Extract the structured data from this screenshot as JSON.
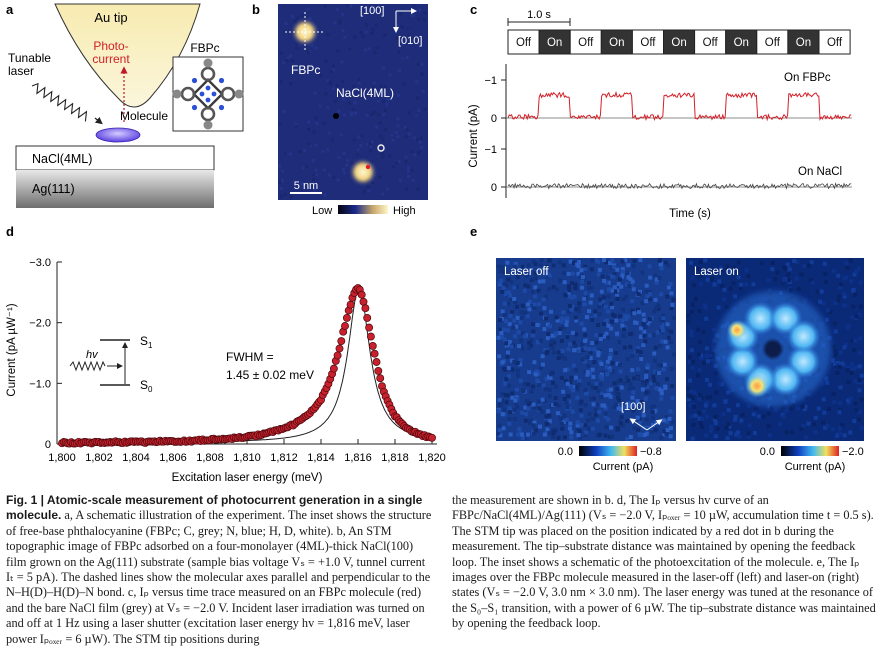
{
  "panels": {
    "a": {
      "letter": "a",
      "tip_label": "Au tip",
      "photocurrent_label": "Photo-\ncurrent",
      "laser_label": "Tunable\nlaser",
      "molecule_label": "Molecule",
      "inset_label": "FBPc",
      "layer_top": "NaCl(4ML)",
      "layer_bottom": "Ag(111)"
    },
    "b": {
      "letter": "b",
      "fbpc_label": "FBPc",
      "nacl_label": "NaCl(4ML)",
      "dir1": "[100]",
      "dir2": "[010]",
      "scale_label": "5 nm",
      "cbar_low": "Low",
      "cbar_high": "High"
    },
    "c": {
      "letter": "c",
      "time_label": "1.0 s",
      "states": [
        "Off",
        "On",
        "Off",
        "On",
        "Off",
        "On",
        "Off",
        "On",
        "Off",
        "On",
        "Off"
      ],
      "ylabel": "Current (pA)",
      "xlabel": "Time (s)",
      "trace1_label": "On FBPc",
      "trace2_label": "On NaCl",
      "ticks_top": [
        "−1",
        "0"
      ],
      "ticks_bottom": [
        "−1",
        "0"
      ]
    },
    "d": {
      "letter": "d",
      "ylabel": "Current (pA µW⁻¹)",
      "xlabel": "Excitation laser energy (meV)",
      "fwhm_line1": "FWHM =",
      "fwhm_line2": "1.45 ± 0.02 meV",
      "s1": "S",
      "s1_sub": "1",
      "s0": "S",
      "s0_sub": "0",
      "hv": "hv"
    },
    "e": {
      "letter": "e",
      "off_label": "Laser off",
      "on_label": "Laser on",
      "dir_label": "[100]",
      "cbar1_low": "0.0",
      "cbar1_high": "−0.8",
      "cbar1_label": "Current (pA)",
      "cbar2_low": "0.0",
      "cbar2_high": "−2.0",
      "cbar2_label": "Current (pA)"
    }
  },
  "chart_data": {
    "type": "scatter",
    "xlabel": "Excitation laser energy (meV)",
    "ylabel": "Current (pA µW⁻¹)",
    "xlim": [
      1800,
      1820
    ],
    "ylim": [
      0,
      -3.0
    ],
    "x_ticks": [
      "1,800",
      "1,802",
      "1,804",
      "1,806",
      "1,808",
      "1,810",
      "1,812",
      "1,814",
      "1,816",
      "1,818",
      "1,820"
    ],
    "y_ticks": [
      "0",
      "−1.0",
      "−2.0",
      "−3.0"
    ],
    "series": [
      {
        "x": [
          1800.0,
          1800.5,
          1801.0,
          1801.5,
          1802.0,
          1802.5,
          1803.0,
          1803.5,
          1804.0,
          1804.5,
          1805.0,
          1805.5,
          1806.0,
          1806.5,
          1807.0,
          1807.5,
          1808.0,
          1808.5,
          1809.0,
          1809.5,
          1810.0,
          1810.5,
          1811.0,
          1811.5,
          1812.0,
          1812.5,
          1813.0,
          1813.5,
          1814.0,
          1814.25,
          1814.5,
          1814.75,
          1815.0,
          1815.2,
          1815.4,
          1815.6,
          1815.75,
          1815.9,
          1816.0,
          1816.1,
          1816.2,
          1816.35,
          1816.5,
          1816.7,
          1816.9,
          1817.1,
          1817.3,
          1817.6,
          1818.0,
          1818.5,
          1819.0,
          1819.5,
          1820.0
        ],
        "y": [
          -0.02,
          -0.02,
          -0.02,
          -0.02,
          -0.03,
          -0.03,
          -0.03,
          -0.03,
          -0.03,
          -0.03,
          -0.04,
          -0.04,
          -0.04,
          -0.05,
          -0.05,
          -0.06,
          -0.07,
          -0.08,
          -0.09,
          -0.1,
          -0.12,
          -0.14,
          -0.17,
          -0.21,
          -0.26,
          -0.32,
          -0.41,
          -0.54,
          -0.74,
          -0.88,
          -1.06,
          -1.3,
          -1.58,
          -1.84,
          -2.08,
          -2.3,
          -2.45,
          -2.55,
          -2.58,
          -2.55,
          -2.47,
          -2.3,
          -2.08,
          -1.78,
          -1.48,
          -1.2,
          -0.96,
          -0.7,
          -0.46,
          -0.3,
          -0.2,
          -0.14,
          -0.1
        ]
      }
    ],
    "fit_line": true,
    "grid": false,
    "legend": "none"
  },
  "caption": {
    "fig_label": "Fig. 1 | Atomic-scale measurement of photocurrent generation in a single molecule.",
    "left_text": " a, A schematic illustration of the experiment. The inset shows the structure of free-base phthalocyanine (FBPc; C, grey; N, blue; H, D, white). b, An STM topographic image of FBPc adsorbed on a four-monolayer (4ML)-thick NaCl(100) film grown on the Ag(111) substrate (sample bias voltage Vₛ = +1.0 V, tunnel current Iₜ = 5 pA). The dashed lines show the molecular axes parallel and perpendicular to the N–H(D)–H(D)–N bond. c, Iₚ versus time trace measured on an FBPc molecule (red) and the bare NaCl film (grey) at Vₛ = −2.0 V. Incident laser irradiation was turned on and off at 1 Hz using a laser shutter (excitation laser energy hv = 1,816 meV, laser power Iₚₒₓₑᵣ = 6 µW). The STM tip positions during",
    "right_text": "the measurement are shown in b. d, The Iₚ versus hv curve of an FBPc/NaCl(4ML)/Ag(111) (Vₛ = −2.0 V, Iₚₒₓₑᵣ = 10 µW, accumulation time t = 0.5 s). The STM tip was placed on the position indicated by a red dot in b during the measurement. The tip–substrate distance was maintained by opening the feedback loop. The inset shows a schematic of the photoexcitation of the molecule. e, The Iₚ images over the FBPc molecule measured in the laser-off (left) and laser-on (right) states (Vₛ = −2.0 V, 3.0 nm × 3.0 nm). The laser energy was tuned at the resonance of the S₀–S₁ transition, with a power of 6 µW. The tip–substrate distance was maintained by opening the feedback loop."
  }
}
